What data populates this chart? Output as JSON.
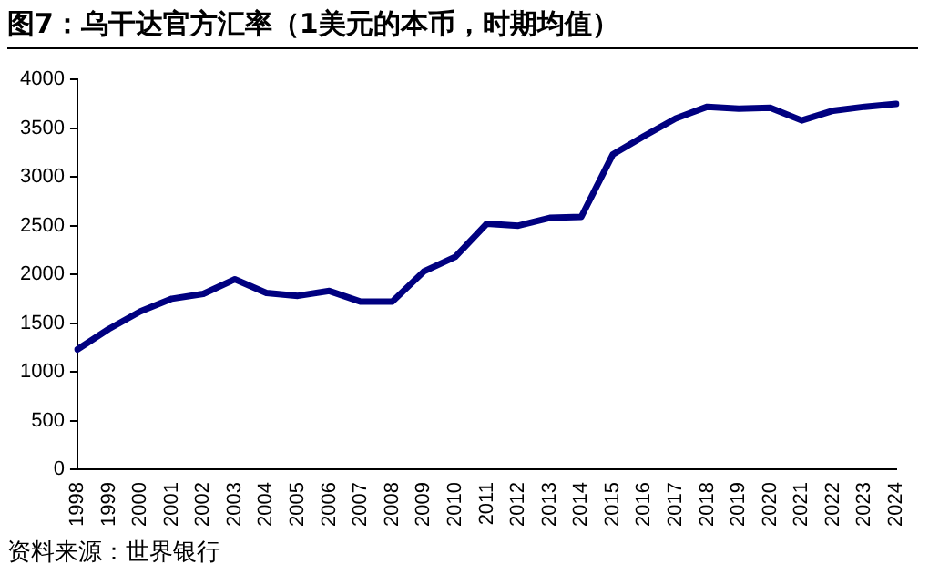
{
  "chart_data": {
    "type": "line",
    "title": "图7：乌干达官方汇率（1美元的本币，时期均值）",
    "categories": [
      "1998",
      "1999",
      "2000",
      "2001",
      "2002",
      "2003",
      "2004",
      "2005",
      "2006",
      "2007",
      "2008",
      "2009",
      "2010",
      "2011",
      "2012",
      "2013",
      "2014",
      "2015",
      "2016",
      "2017",
      "2018",
      "2019",
      "2020",
      "2021",
      "2022",
      "2023",
      "2024"
    ],
    "series": [
      {
        "color": "#000080",
        "values": [
          1230,
          1440,
          1620,
          1750,
          1800,
          1950,
          1810,
          1780,
          1830,
          1720,
          1720,
          2030,
          2180,
          2520,
          2500,
          2580,
          2590,
          3230,
          3420,
          3600,
          3720,
          3700,
          3710,
          3580,
          3680,
          3720,
          3750
        ]
      }
    ],
    "ylim": [
      0,
      4000
    ],
    "yticks": [
      0,
      500,
      1000,
      1500,
      2000,
      2500,
      3000,
      3500,
      4000
    ],
    "grid": false,
    "legend": false,
    "marker": "none",
    "line_style": "solid",
    "annotations": [
      "资料来源：世界银行"
    ]
  }
}
